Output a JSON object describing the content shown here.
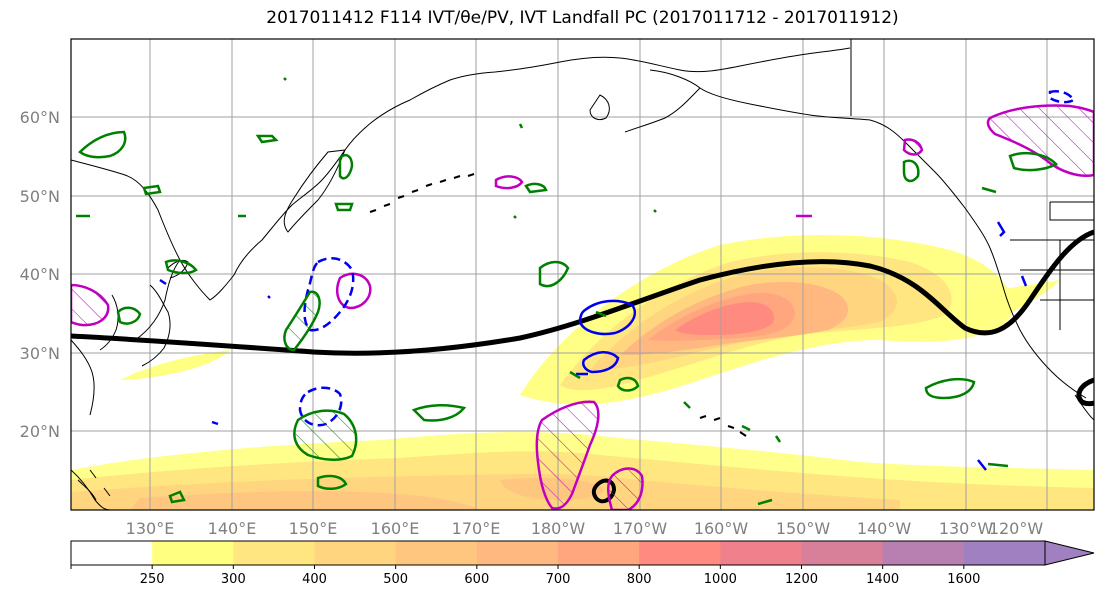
{
  "title": "2017011412 F114 IVT/θe/PV, IVT Landfall PC (2017011712 - 2017011912)",
  "lat_labels": [
    "60°N",
    "50°N",
    "40°N",
    "30°N",
    "20°N"
  ],
  "lon_labels": [
    "130°E",
    "140°E",
    "150°E",
    "160°E",
    "170°E",
    "180°W",
    "170°W",
    "160°W",
    "150°W",
    "140°W",
    "130°W",
    "120°W"
  ],
  "colorbar": {
    "ticks": [
      "250",
      "300",
      "400",
      "500",
      "600",
      "700",
      "800",
      "1000",
      "1200",
      "1400",
      "1600"
    ],
    "colors": [
      "#ffffff",
      "#ffff80",
      "#ffe680",
      "#ffd580",
      "#ffc680",
      "#ffb880",
      "#ffa67f",
      "#ff8b80",
      "#f0808b",
      "#d8809a",
      "#b880b0",
      "#a080c0"
    ]
  },
  "colors": {
    "land_outline": "#000000",
    "trough_line": "#000000",
    "green_contour": "#008000",
    "blue_contour": "#0000ee",
    "magenta_contour": "#c000c0",
    "grid": "#a0a0a0"
  }
}
